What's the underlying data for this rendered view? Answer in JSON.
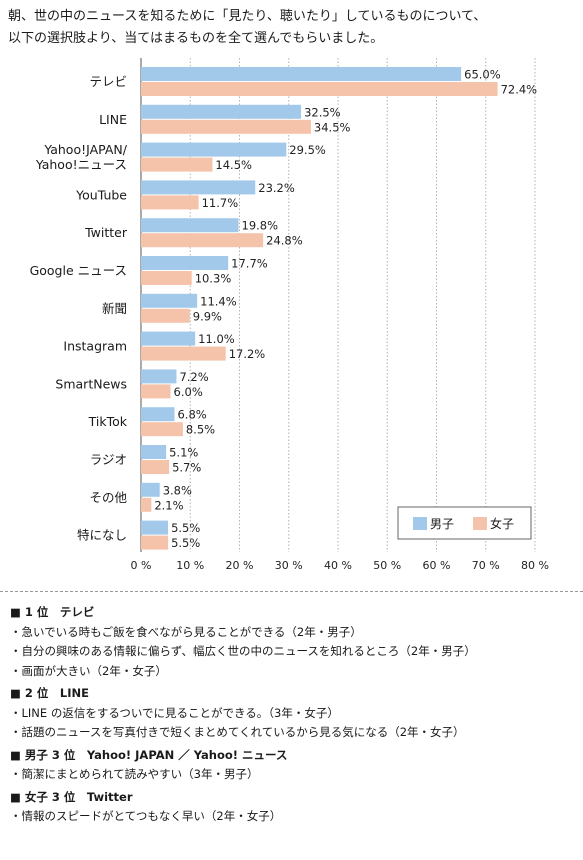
{
  "question": {
    "line1": "朝、世の中のニュースを知るために「見たり、聴いたり」しているものについて、",
    "line2": "以下の選択肢より、当てはまるものを全て選んでもらいました。"
  },
  "chart_data": {
    "type": "bar",
    "orientation": "horizontal",
    "categories": [
      "テレビ",
      "LINE",
      "Yahoo!JAPAN/\nYahoo!ニュース",
      "YouTube",
      "Twitter",
      "Google ニュース",
      "新聞",
      "Instagram",
      "SmartNews",
      "TikTok",
      "ラジオ",
      "その他",
      "特になし"
    ],
    "series": [
      {
        "name": "男子",
        "color": "#a3c9ea",
        "values": [
          65.0,
          32.5,
          29.5,
          23.2,
          19.8,
          17.7,
          11.4,
          11.0,
          7.2,
          6.8,
          5.1,
          3.8,
          5.5
        ]
      },
      {
        "name": "女子",
        "color": "#f5c3aa",
        "values": [
          72.4,
          34.5,
          14.5,
          11.7,
          24.8,
          10.3,
          9.9,
          17.2,
          6.0,
          8.5,
          5.7,
          2.1,
          5.5
        ]
      }
    ],
    "xlim": [
      0,
      80
    ],
    "xticks": [
      0,
      10,
      20,
      30,
      40,
      50,
      60,
      70,
      80
    ],
    "tick_suffix": " %",
    "value_suffix": "%",
    "grid": "vertical dotted",
    "legend": "bottom-right"
  },
  "comments": [
    {
      "heading": "■ 1 位　テレビ",
      "items": [
        "・急いでいる時もご飯を食べながら見ることができる（2年・男子）",
        "・自分の興味のある情報に偏らず、幅広く世の中のニュースを知れるところ（2年・男子）",
        "・画面が大きい（2年・女子）"
      ]
    },
    {
      "heading": "■ 2 位　LINE",
      "items": [
        "・LINE の返信をするついでに見ることができる。（3年・女子）",
        "・話題のニュースを写真付きで短くまとめてくれているから見る気になる（2年・女子）"
      ]
    },
    {
      "heading": "■ 男子 3 位　Yahoo! JAPAN ／ Yahoo! ニュース",
      "items": [
        "・簡潔にまとめられて読みやすい（3年・男子）"
      ]
    },
    {
      "heading": "■ 女子 3 位　Twitter",
      "items": [
        "・情報のスピードがとてつもなく早い（2年・女子）"
      ]
    }
  ]
}
